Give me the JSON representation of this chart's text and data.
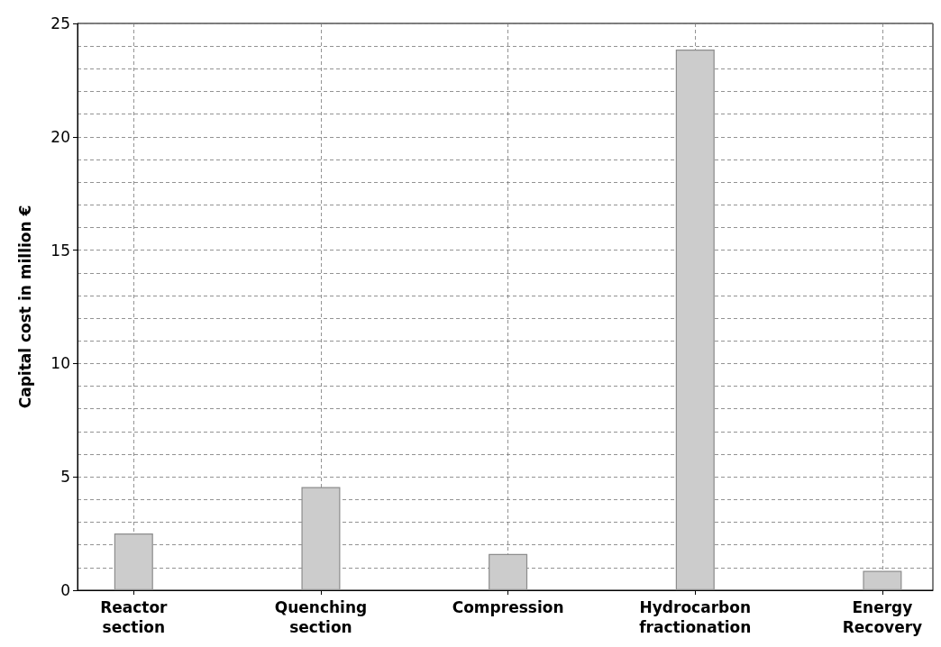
{
  "chart_data": {
    "type": "bar",
    "ylabel": "Capital cost in million €",
    "categories": [
      "Reactor section",
      "Quenching section",
      "Compression",
      "Hydrocarbon fractionation",
      "Energy Recovery"
    ],
    "values": [
      2.5,
      4.55,
      1.6,
      23.85,
      0.85
    ],
    "color": "#cccccc",
    "ylim": [
      0,
      25
    ],
    "yticks": [
      0,
      5,
      10,
      15,
      20,
      25
    ],
    "grid": true
  }
}
